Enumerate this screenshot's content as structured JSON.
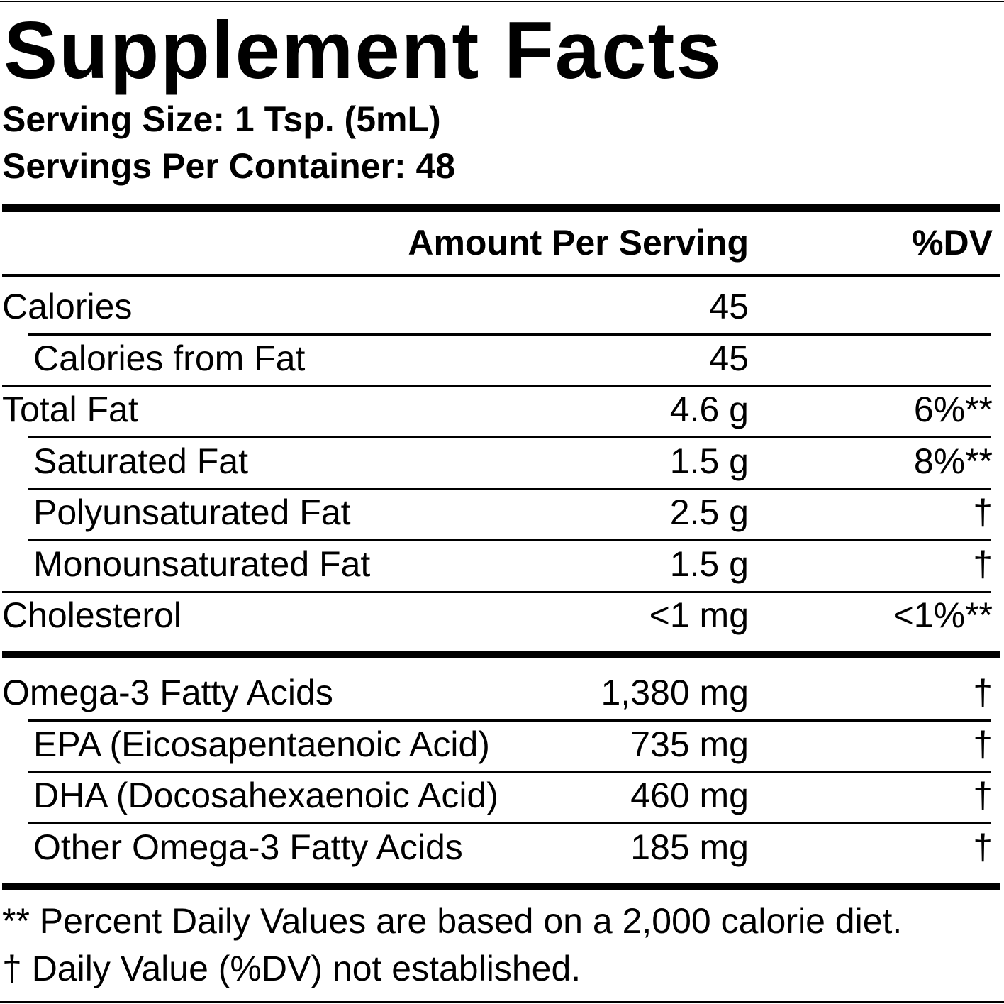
{
  "title": "Supplement Facts",
  "serving_size": "Serving Size: 1 Tsp. (5mL)",
  "servings_per_container": "Servings Per Container: 48",
  "header": {
    "amount": "Amount Per Serving",
    "dv": "%DV"
  },
  "sections": [
    {
      "rows": [
        {
          "name": "Calories",
          "amount": "45",
          "subrows": [
            {
              "name": "Calories from Fat",
              "amount": "45"
            }
          ]
        },
        {
          "name": "Total Fat",
          "amount": "4.6 g",
          "dv": "6%**",
          "subrows": [
            {
              "name": "Saturated Fat",
              "amount": "1.5 g",
              "dv": "8%**"
            },
            {
              "name": "Polyunsaturated Fat",
              "amount": "2.5 g",
              "dv": "†"
            },
            {
              "name": "Monounsaturated Fat",
              "amount": "1.5 g",
              "dv": "†"
            }
          ]
        },
        {
          "name": "Cholesterol",
          "amount": "<1 mg",
          "dv": "<1%**"
        }
      ]
    },
    {
      "rows": [
        {
          "name": "Omega-3 Fatty Acids",
          "amount": "1,380 mg",
          "dv": "†",
          "subrows": [
            {
              "name": "EPA (Eicosapentaenoic Acid)",
              "amount": "735 mg",
              "dv": "†"
            },
            {
              "name": "DHA (Docosahexaenoic Acid)",
              "amount": "460 mg",
              "dv": "†"
            },
            {
              "name": "Other Omega-3 Fatty Acids",
              "amount": "185 mg",
              "dv": "†"
            }
          ]
        }
      ]
    }
  ],
  "footnotes": [
    "** Percent Daily Values are based on a 2,000 calorie diet.",
    "† Daily Value (%DV) not established."
  ]
}
